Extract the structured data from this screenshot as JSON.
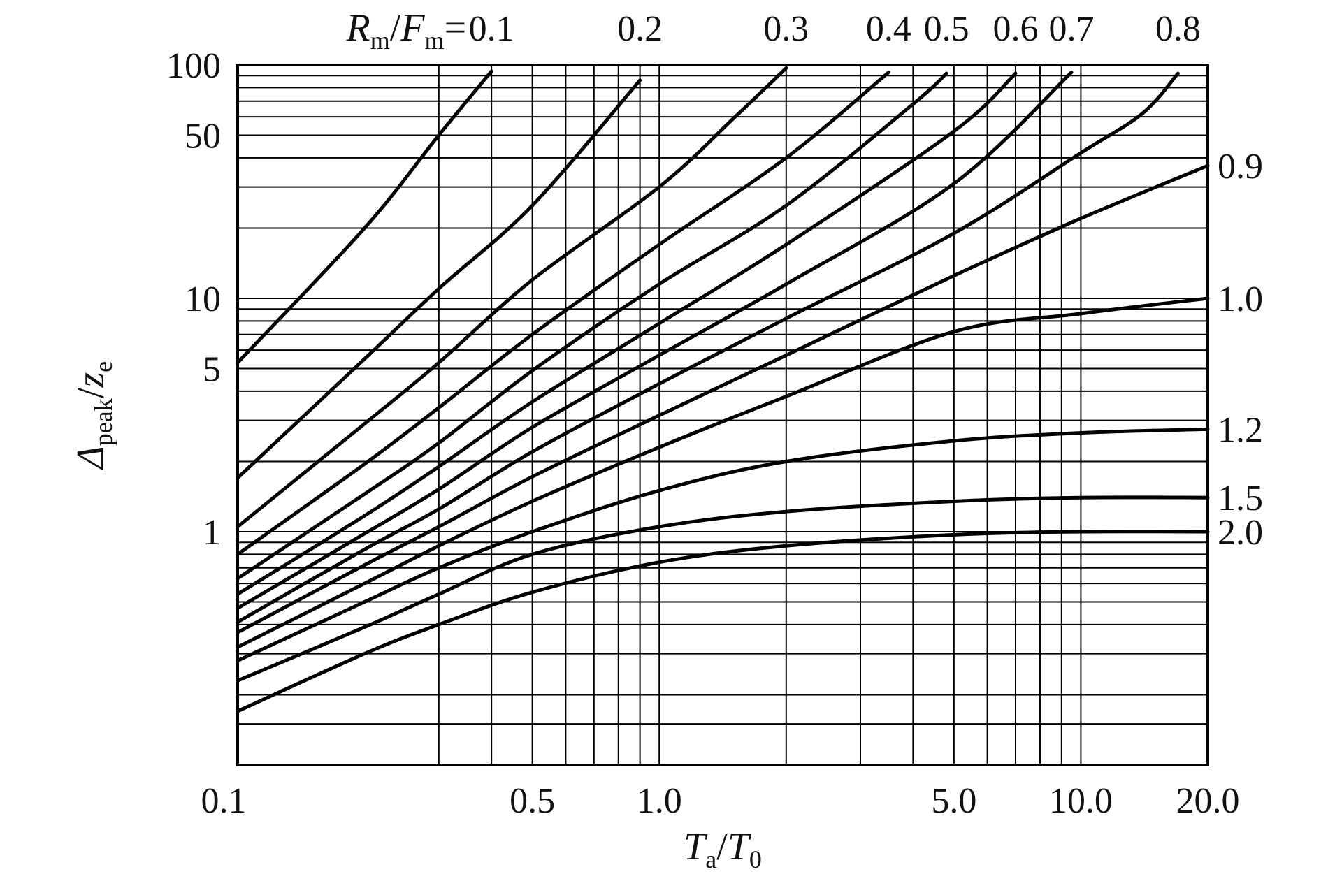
{
  "chart_data": {
    "type": "line",
    "x_scale": "log",
    "y_scale": "log",
    "xlim": [
      0.1,
      20
    ],
    "ylim": [
      0.1,
      100
    ],
    "grid": true,
    "xlabel": {
      "main": "T",
      "sub": "a",
      "slash": "/",
      "main2": "T",
      "sub2": "0"
    },
    "ylabel": {
      "main": "Δ",
      "sub": "peak",
      "slash": "/",
      "main2": "z",
      "sub2": "e"
    },
    "top_label": {
      "main": "R",
      "sub": "m",
      "slash": "/",
      "main2": "F",
      "sub2": "m",
      "eq": "="
    },
    "x_tick_labels": [
      {
        "value": 0.1,
        "label": "0.1"
      },
      {
        "value": 0.5,
        "label": "0.5"
      },
      {
        "value": 1.0,
        "label": "1.0"
      },
      {
        "value": 5.0,
        "label": "5.0"
      },
      {
        "value": 10.0,
        "label": "10.0"
      },
      {
        "value": 20.0,
        "label": "20.0"
      }
    ],
    "y_tick_labels": [
      {
        "value": 1,
        "label": "1"
      },
      {
        "value": 5,
        "label": "5"
      },
      {
        "value": 10,
        "label": "10"
      },
      {
        "value": 50,
        "label": "50"
      },
      {
        "value": 100,
        "label": "100"
      }
    ],
    "x_gridlines": [
      0.3,
      0.4,
      0.5,
      0.6,
      0.7,
      0.8,
      0.9,
      1.0,
      2.0,
      3.0,
      4.0,
      5.0,
      6.0,
      7.0,
      8.0,
      9.0,
      10.0
    ],
    "y_gridlines": [
      0.15,
      0.2,
      0.3,
      0.4,
      0.5,
      0.6,
      0.7,
      0.8,
      0.9,
      1.0,
      2.0,
      3.0,
      4.0,
      5.0,
      6.0,
      7.0,
      8.0,
      9.0,
      10.0,
      20.0,
      30.0,
      40.0,
      50.0,
      60.0,
      70.0,
      80.0,
      90.0
    ],
    "series": [
      {
        "name": "0.1",
        "label_position": "top",
        "points": [
          [
            0.1,
            5.3
          ],
          [
            0.2,
            20
          ],
          [
            0.3,
            50
          ],
          [
            0.4,
            94
          ]
        ]
      },
      {
        "name": "0.2",
        "label_position": "top",
        "points": [
          [
            0.1,
            1.7
          ],
          [
            0.2,
            5.5
          ],
          [
            0.3,
            11
          ],
          [
            0.5,
            25
          ],
          [
            0.9,
            86
          ]
        ]
      },
      {
        "name": "0.3",
        "label_position": "top",
        "points": [
          [
            0.1,
            1.05
          ],
          [
            0.2,
            2.9
          ],
          [
            0.3,
            5.3
          ],
          [
            0.5,
            12
          ],
          [
            1.0,
            30
          ],
          [
            1.5,
            59
          ],
          [
            2.0,
            97
          ]
        ]
      },
      {
        "name": "0.4",
        "label_position": "top",
        "points": [
          [
            0.1,
            0.8
          ],
          [
            0.2,
            1.95
          ],
          [
            0.3,
            3.4
          ],
          [
            0.5,
            7
          ],
          [
            1.0,
            17
          ],
          [
            2.0,
            40
          ],
          [
            3.5,
            93
          ]
        ]
      },
      {
        "name": "0.5",
        "label_position": "top",
        "points": [
          [
            0.1,
            0.63
          ],
          [
            0.2,
            1.45
          ],
          [
            0.3,
            2.4
          ],
          [
            0.5,
            4.9
          ],
          [
            1.0,
            11.5
          ],
          [
            2.0,
            25
          ],
          [
            4.0,
            68
          ],
          [
            4.8,
            92
          ]
        ]
      },
      {
        "name": "0.6",
        "label_position": "top",
        "points": [
          [
            0.1,
            0.54
          ],
          [
            0.2,
            1.17
          ],
          [
            0.3,
            1.9
          ],
          [
            0.5,
            3.6
          ],
          [
            1.0,
            7.8
          ],
          [
            2.0,
            17
          ],
          [
            5.0,
            52
          ],
          [
            7.0,
            92
          ]
        ]
      },
      {
        "name": "0.7",
        "label_position": "top",
        "points": [
          [
            0.1,
            0.47
          ],
          [
            0.2,
            0.98
          ],
          [
            0.3,
            1.52
          ],
          [
            0.5,
            2.8
          ],
          [
            1.0,
            5.7
          ],
          [
            2.0,
            11.5
          ],
          [
            5.0,
            31
          ],
          [
            9.5,
            93
          ]
        ]
      },
      {
        "name": "0.8",
        "label_position": "top",
        "points": [
          [
            0.1,
            0.41
          ],
          [
            0.2,
            0.84
          ],
          [
            0.3,
            1.25
          ],
          [
            0.5,
            2.2
          ],
          [
            1.0,
            4.3
          ],
          [
            2.0,
            8.2
          ],
          [
            5.0,
            19
          ],
          [
            10.0,
            42
          ],
          [
            14.0,
            62
          ],
          [
            17.0,
            92
          ]
        ]
      },
      {
        "name": "0.9",
        "label_position": "right",
        "points": [
          [
            0.1,
            0.37
          ],
          [
            0.2,
            0.72
          ],
          [
            0.3,
            1.05
          ],
          [
            0.5,
            1.72
          ],
          [
            1.0,
            3.15
          ],
          [
            2.0,
            5.7
          ],
          [
            5.0,
            12.5
          ],
          [
            10.0,
            22
          ],
          [
            20.0,
            37
          ]
        ]
      },
      {
        "name": "1.0",
        "label_position": "right",
        "points": [
          [
            0.1,
            0.32
          ],
          [
            0.2,
            0.6
          ],
          [
            0.3,
            0.87
          ],
          [
            0.5,
            1.35
          ],
          [
            1.0,
            2.3
          ],
          [
            2.0,
            3.8
          ],
          [
            5.0,
            7.2
          ],
          [
            10.0,
            8.6
          ],
          [
            20.0,
            10
          ]
        ]
      },
      {
        "name": "1.2",
        "label_position": "right",
        "points": [
          [
            0.1,
            0.28
          ],
          [
            0.2,
            0.5
          ],
          [
            0.3,
            0.7
          ],
          [
            0.5,
            1.0
          ],
          [
            1.0,
            1.5
          ],
          [
            2.0,
            2.0
          ],
          [
            5.0,
            2.45
          ],
          [
            10.0,
            2.65
          ],
          [
            20.0,
            2.75
          ]
        ]
      },
      {
        "name": "1.5",
        "label_position": "right",
        "points": [
          [
            0.1,
            0.23
          ],
          [
            0.2,
            0.39
          ],
          [
            0.3,
            0.54
          ],
          [
            0.5,
            0.8
          ],
          [
            1.0,
            1.05
          ],
          [
            2.0,
            1.22
          ],
          [
            5.0,
            1.35
          ],
          [
            10.0,
            1.4
          ],
          [
            20.0,
            1.4
          ]
        ]
      },
      {
        "name": "2.0",
        "label_position": "right",
        "points": [
          [
            0.1,
            0.17
          ],
          [
            0.2,
            0.3
          ],
          [
            0.3,
            0.4
          ],
          [
            0.5,
            0.55
          ],
          [
            1.0,
            0.74
          ],
          [
            2.0,
            0.87
          ],
          [
            5.0,
            0.97
          ],
          [
            10.0,
            1.0
          ],
          [
            20.0,
            1.0
          ]
        ]
      }
    ]
  }
}
